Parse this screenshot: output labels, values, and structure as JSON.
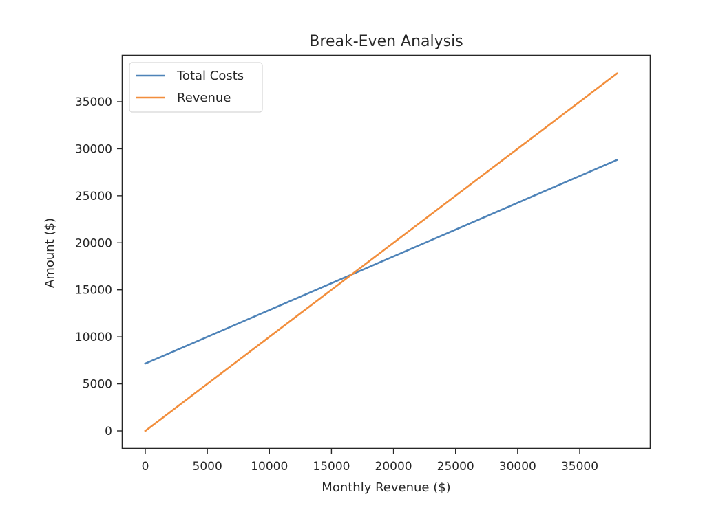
{
  "chart_data": {
    "type": "line",
    "title": "Break-Even Analysis",
    "xlabel": "Monthly Revenue ($)",
    "ylabel": "Amount ($)",
    "xlim": [
      -1900,
      39900
    ],
    "ylim": [
      -1900,
      39900
    ],
    "xticks": [
      0,
      5000,
      10000,
      15000,
      20000,
      25000,
      30000,
      35000
    ],
    "yticks": [
      0,
      5000,
      10000,
      15000,
      20000,
      25000,
      30000,
      35000
    ],
    "grid": false,
    "legend_position": "upper left",
    "x": [
      0,
      38000
    ],
    "series": [
      {
        "name": "Total Costs",
        "color": "#4e83b8",
        "values": [
          7150,
          28810
        ]
      },
      {
        "name": "Revenue",
        "color": "#f28e3c",
        "values": [
          0,
          38000
        ]
      }
    ],
    "break_even_approx": {
      "x": 16600,
      "y": 16600
    }
  },
  "labels": {
    "title": "Break-Even Analysis",
    "xlabel": "Monthly Revenue ($)",
    "ylabel": "Amount ($)",
    "xticks": [
      "0",
      "5000",
      "10000",
      "15000",
      "20000",
      "25000",
      "30000",
      "35000"
    ],
    "yticks": [
      "0",
      "5000",
      "10000",
      "15000",
      "20000",
      "25000",
      "30000",
      "35000"
    ],
    "legend": [
      "Total Costs",
      "Revenue"
    ]
  }
}
